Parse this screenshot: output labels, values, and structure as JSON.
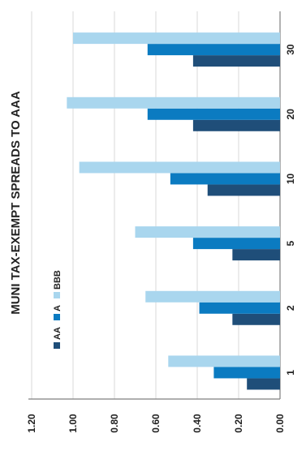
{
  "chart_data": {
    "type": "bar",
    "orientation": "vertical-rotated",
    "title": "MUNI TAX-EXEMPT SPREADS TO AAA",
    "categories": [
      "1",
      "2",
      "5",
      "10",
      "20",
      "30"
    ],
    "series": [
      {
        "name": "AA",
        "color": "#1f4e79",
        "values": [
          0.16,
          0.23,
          0.23,
          0.35,
          0.42,
          0.42
        ]
      },
      {
        "name": "A",
        "color": "#0b7bc1",
        "values": [
          0.32,
          0.39,
          0.42,
          0.53,
          0.64,
          0.64
        ]
      },
      {
        "name": "BBB",
        "color": "#a9d6ee",
        "values": [
          0.54,
          0.65,
          0.7,
          0.97,
          1.03,
          1.0
        ]
      }
    ],
    "y_ticks": [
      "0.00",
      "0.20",
      "0.40",
      "0.60",
      "0.80",
      "1.00",
      "1.20"
    ],
    "ylim": [
      0,
      1.2
    ],
    "grid": true,
    "legend_position": "top-left"
  }
}
